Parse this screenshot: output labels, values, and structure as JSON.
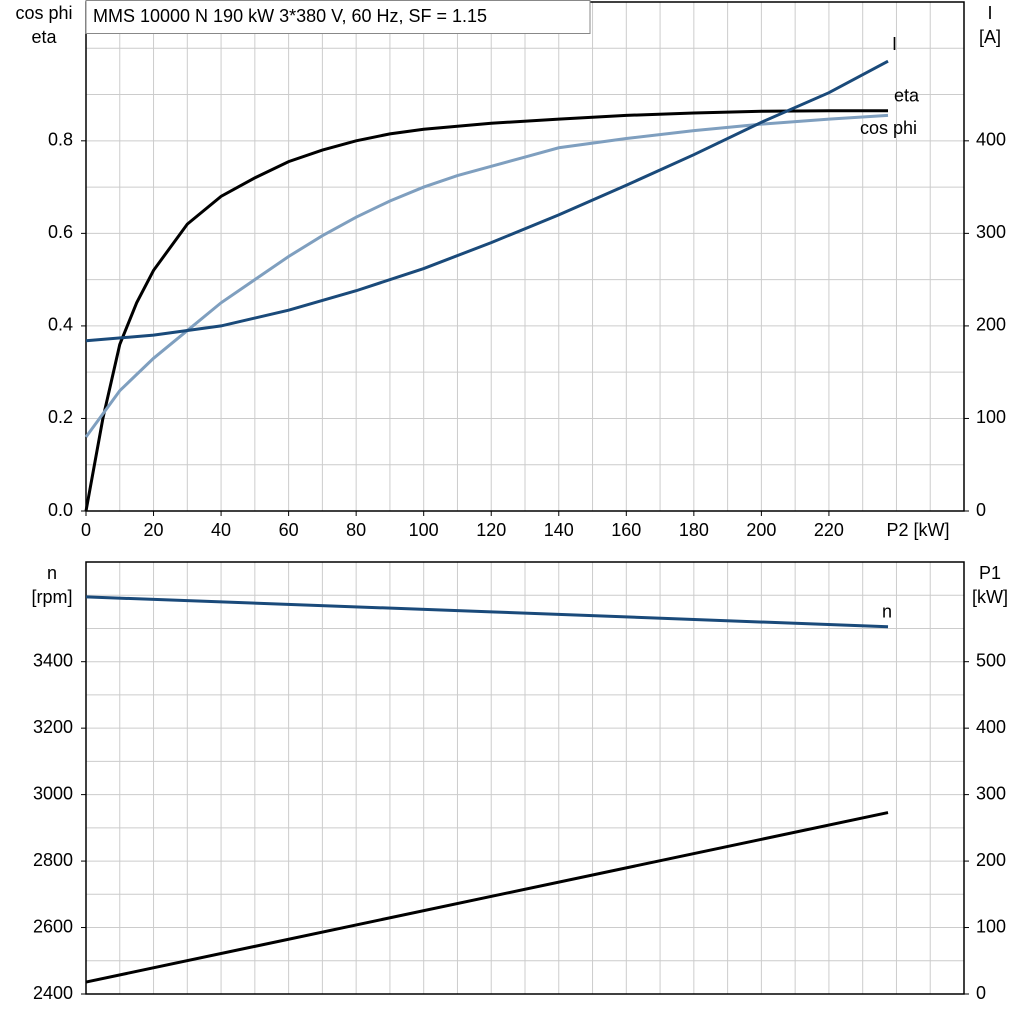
{
  "chart_data": [
    {
      "type": "line",
      "title": "MMS 10000 N   190 kW   3*380 V, 60 Hz, SF = 1.15",
      "ylabel": [
        "cos phi",
        "eta"
      ],
      "y2label": [
        "I",
        "[A]"
      ],
      "xlabel": "P2 [kW]",
      "xlim": [
        0,
        260
      ],
      "xticks": [
        0,
        20,
        40,
        60,
        80,
        100,
        120,
        140,
        160,
        180,
        200,
        220
      ],
      "xgrid": [
        10,
        30,
        50,
        70,
        90,
        110,
        130,
        150,
        170,
        190,
        210,
        230,
        240,
        250
      ],
      "ylim": [
        0,
        1.1
      ],
      "yticks": [
        {
          "value": 0,
          "label": "0.0"
        },
        0.2,
        0.4,
        0.6,
        0.8
      ],
      "ygrid": [
        0.1,
        0.3,
        0.5,
        0.7,
        0.9,
        1.0
      ],
      "y2lim": [
        0,
        550
      ],
      "y2ticks": [
        0,
        100,
        200,
        300,
        400
      ],
      "grid": true,
      "series": [
        {
          "name": "eta",
          "color": "#000000",
          "x": [
            0,
            5,
            10,
            15,
            20,
            30,
            40,
            50,
            60,
            70,
            80,
            90,
            100,
            120,
            140,
            160,
            180,
            200,
            220,
            237.5
          ],
          "values": [
            0,
            0.2,
            0.36,
            0.45,
            0.52,
            0.62,
            0.68,
            0.72,
            0.755,
            0.78,
            0.8,
            0.815,
            0.825,
            0.838,
            0.847,
            0.855,
            0.86,
            0.864,
            0.865,
            0.865
          ]
        },
        {
          "name": "cos phi",
          "color": "#7f9fbf",
          "x": [
            0,
            10,
            20,
            30,
            40,
            50,
            60,
            70,
            80,
            90,
            100,
            110,
            120,
            130,
            140,
            160,
            180,
            200,
            220,
            237.5
          ],
          "values": [
            0.16,
            0.26,
            0.33,
            0.39,
            0.45,
            0.5,
            0.55,
            0.595,
            0.635,
            0.67,
            0.7,
            0.725,
            0.745,
            0.765,
            0.785,
            0.805,
            0.822,
            0.836,
            0.847,
            0.855
          ]
        },
        {
          "name": "I",
          "color": "#1a4a7a",
          "axis": "y2",
          "x": [
            0,
            20,
            40,
            60,
            80,
            100,
            120,
            140,
            160,
            180,
            200,
            220,
            237.5
          ],
          "values": [
            184,
            190,
            200,
            217,
            238,
            262,
            290,
            320,
            352,
            385,
            420,
            452,
            486
          ]
        }
      ]
    },
    {
      "type": "line",
      "ylabel": [
        "n",
        "[rpm]"
      ],
      "y2label": [
        "P1",
        "[kW]"
      ],
      "xlim": [
        0,
        260
      ],
      "xgrid": [
        10,
        20,
        30,
        40,
        50,
        60,
        70,
        80,
        90,
        100,
        110,
        120,
        130,
        140,
        150,
        160,
        170,
        180,
        190,
        200,
        210,
        220,
        230,
        240,
        250
      ],
      "ylim": [
        2400,
        3700
      ],
      "yticks": [
        2400,
        2600,
        2800,
        3000,
        3200,
        3400
      ],
      "ygrid": [
        2500,
        2700,
        2900,
        3100,
        3300,
        3500,
        3600
      ],
      "y2lim": [
        0,
        650
      ],
      "y2ticks": [
        0,
        100,
        200,
        300,
        400,
        500
      ],
      "grid": true,
      "series": [
        {
          "name": "n",
          "color": "#1a4a7a",
          "x": [
            0,
            120,
            237.5
          ],
          "values": [
            3595,
            3550,
            3505
          ]
        },
        {
          "color": "#000000",
          "axis": "y2",
          "x": [
            0,
            237.5
          ],
          "values": [
            18,
            273
          ]
        }
      ]
    }
  ]
}
